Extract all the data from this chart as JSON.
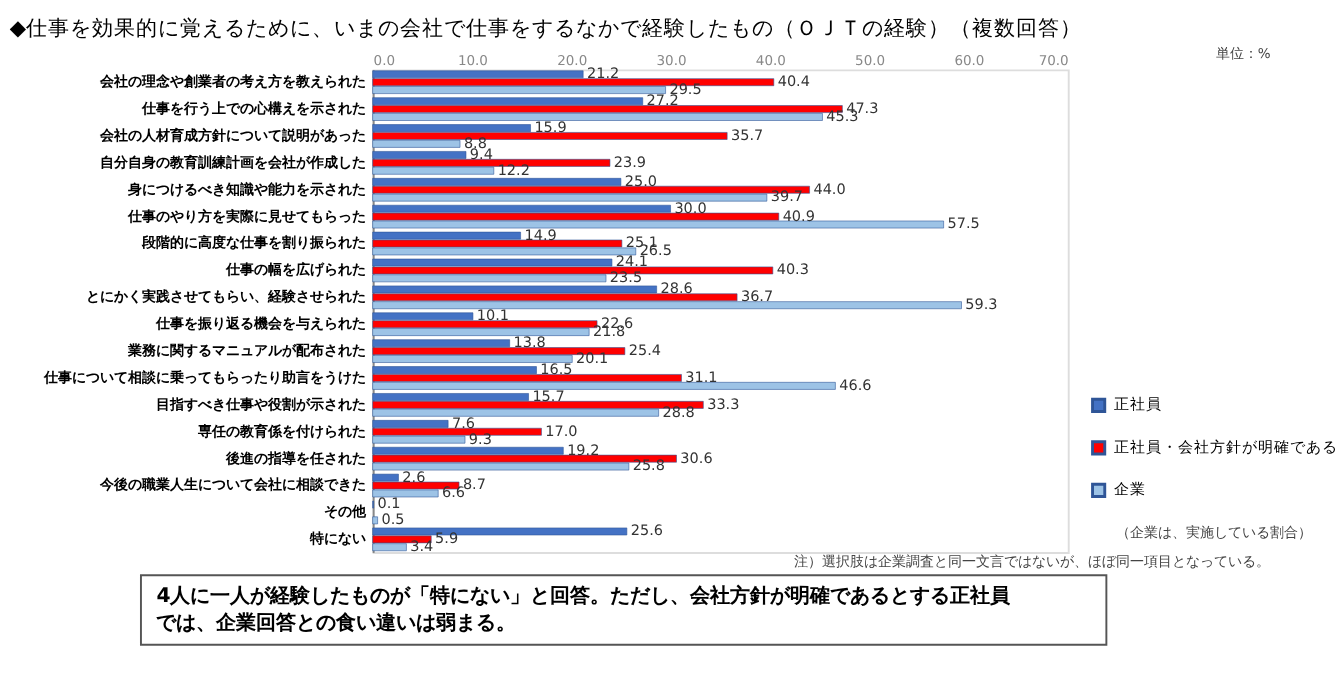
{
  "chart_data": {
    "type": "bar",
    "orientation": "horizontal",
    "title": "◆仕事を効果的に覚えるために、いまの会社で仕事をするなかで経験したもの（ＯＪＴの経験）（複数回答）",
    "categories": [
      "会社の理念や創業者の考え方を教えられた",
      "仕事を行う上での心構えを示された",
      "会社の人材育成方針について説明があった",
      "自分自身の教育訓練計画を会社が作成した",
      "身につけるべき知識や能力を示された",
      "仕事のやり方を実際に見せてもらった",
      "段階的に高度な仕事を割り振られた",
      "仕事の幅を広げられた",
      "とにかく実践させてもらい、経験させられた",
      "仕事を振り返る機会を与えられた",
      "業務に関するマニュアルが配布された",
      "仕事について相談に乗ってもらったり助言をうけた",
      "目指すべき仕事や役割が示された",
      "専任の教育係を付けられた",
      "後進の指導を任された",
      "今後の職業人生について会社に相談できた",
      "その他",
      "特にない"
    ],
    "series": [
      {
        "name": "正社員",
        "color": "#4472c4",
        "values": [
          21.2,
          27.2,
          15.9,
          9.4,
          25.0,
          30.0,
          14.9,
          24.1,
          28.6,
          10.1,
          13.8,
          16.5,
          15.7,
          7.6,
          19.2,
          2.6,
          0.1,
          25.6
        ],
        "value_labels": [
          "21.2",
          "27.2",
          "15.9",
          "9.4",
          "25.0",
          "30.0",
          "14.9",
          "24.1",
          "28.6",
          "10.1",
          "13.8",
          "16.5",
          "15.7",
          "7.6",
          "19.2",
          "2.6",
          "0.1",
          "25.6"
        ]
      },
      {
        "name": "正社員・会社方針が明確である",
        "color": "#ff0000",
        "values": [
          40.4,
          47.3,
          35.7,
          23.9,
          44.0,
          40.9,
          25.1,
          40.3,
          36.7,
          22.6,
          25.4,
          31.1,
          33.3,
          17.0,
          30.6,
          8.7,
          null,
          5.9
        ],
        "value_labels": [
          "40.4",
          "47.3",
          "35.7",
          "23.9",
          "44.0",
          "40.9",
          "25.1",
          "40.3",
          "36.7",
          "22.6",
          "25.4",
          "31.1",
          "33.3",
          "17.0",
          "30.6",
          "8.7",
          null,
          "5.9"
        ]
      },
      {
        "name": "企業",
        "color": "#9dc3e6",
        "values": [
          29.5,
          45.3,
          8.8,
          12.2,
          39.7,
          57.5,
          26.5,
          23.5,
          59.3,
          21.8,
          20.1,
          46.6,
          28.8,
          9.3,
          25.8,
          6.6,
          0.5,
          3.4
        ],
        "value_labels": [
          "29.5",
          "45.3",
          "8.8",
          "12.2",
          "39.7",
          "57.5",
          "26.5",
          "23.5",
          "59.3",
          "21.8",
          "20.1",
          "46.6",
          "28.8",
          "9.3",
          "25.8",
          "6.6",
          "0.5",
          "3.4"
        ]
      }
    ],
    "xlim": [
      0,
      70
    ],
    "xticks": [
      {
        "value": 0,
        "label": "0.0"
      },
      {
        "value": 10,
        "label": "10.0"
      },
      {
        "value": 20,
        "label": "20.0"
      },
      {
        "value": 30,
        "label": "30.0"
      },
      {
        "value": 40,
        "label": "40.0"
      },
      {
        "value": 50,
        "label": "50.0"
      },
      {
        "value": 60,
        "label": "60.0"
      },
      {
        "value": 70,
        "label": "70.0"
      }
    ],
    "grid": false,
    "legend": "bottom right",
    "annotations": [
      "単位：%",
      "（企業は、実施している割合）",
      "注）選択肢は企業調査と同一文言ではないが、ほぼ同一項目となっている。",
      "4人に一人が経験したものが「特にない」と回答。ただし、会社方針が明確であるとする正社員では、企業回答との食い違いは弱まる。"
    ]
  }
}
